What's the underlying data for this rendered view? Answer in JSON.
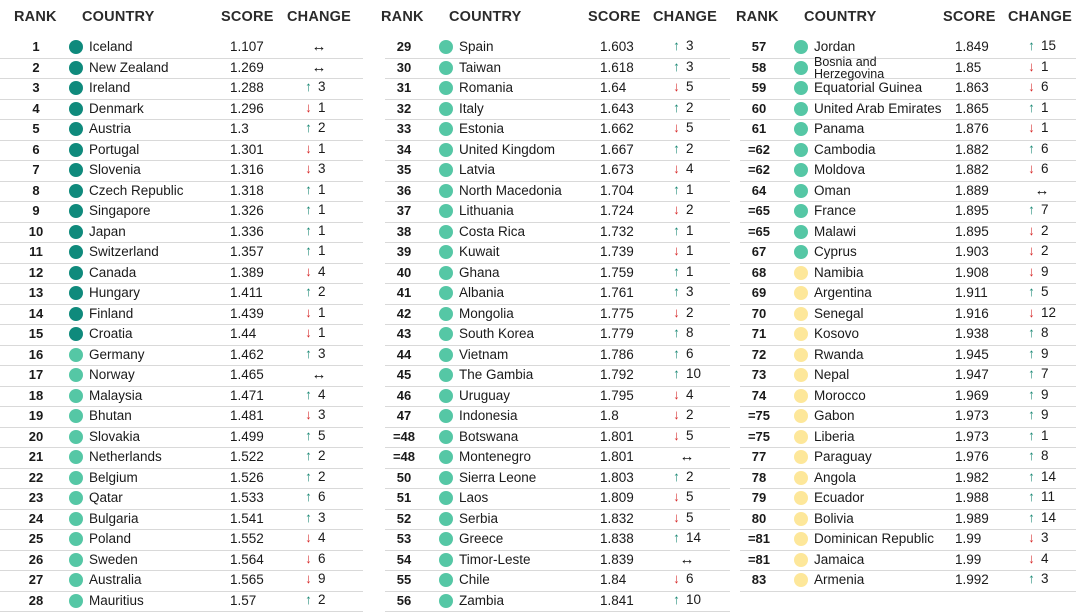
{
  "headers": {
    "rank": "RANK",
    "country": "COUNTRY",
    "score": "SCORE",
    "change": "CHANGE"
  },
  "colors": {
    "dark": "#0f8a7c",
    "mid": "#55c7a5",
    "light": "#fde79a",
    "up": "#1d8a76",
    "down": "#d72b2b"
  },
  "columns": [
    [
      {
        "rank": "1",
        "country": "Iceland",
        "score": "1.107",
        "dir": "same",
        "change": "",
        "tier": "dark"
      },
      {
        "rank": "2",
        "country": "New Zealand",
        "score": "1.269",
        "dir": "same",
        "change": "",
        "tier": "dark"
      },
      {
        "rank": "3",
        "country": "Ireland",
        "score": "1.288",
        "dir": "up",
        "change": "3",
        "tier": "dark"
      },
      {
        "rank": "4",
        "country": "Denmark",
        "score": "1.296",
        "dir": "down",
        "change": "1",
        "tier": "dark"
      },
      {
        "rank": "5",
        "country": "Austria",
        "score": "1.3",
        "dir": "up",
        "change": "2",
        "tier": "dark"
      },
      {
        "rank": "6",
        "country": "Portugal",
        "score": "1.301",
        "dir": "down",
        "change": "1",
        "tier": "dark"
      },
      {
        "rank": "7",
        "country": "Slovenia",
        "score": "1.316",
        "dir": "down",
        "change": "3",
        "tier": "dark"
      },
      {
        "rank": "8",
        "country": "Czech Republic",
        "score": "1.318",
        "dir": "up",
        "change": "1",
        "tier": "dark"
      },
      {
        "rank": "9",
        "country": "Singapore",
        "score": "1.326",
        "dir": "up",
        "change": "1",
        "tier": "dark"
      },
      {
        "rank": "10",
        "country": "Japan",
        "score": "1.336",
        "dir": "up",
        "change": "1",
        "tier": "dark"
      },
      {
        "rank": "11",
        "country": "Switzerland",
        "score": "1.357",
        "dir": "up",
        "change": "1",
        "tier": "dark"
      },
      {
        "rank": "12",
        "country": "Canada",
        "score": "1.389",
        "dir": "down",
        "change": "4",
        "tier": "dark"
      },
      {
        "rank": "13",
        "country": "Hungary",
        "score": "1.411",
        "dir": "up",
        "change": "2",
        "tier": "dark"
      },
      {
        "rank": "14",
        "country": "Finland",
        "score": "1.439",
        "dir": "down",
        "change": "1",
        "tier": "dark"
      },
      {
        "rank": "15",
        "country": "Croatia",
        "score": "1.44",
        "dir": "down",
        "change": "1",
        "tier": "dark"
      },
      {
        "rank": "16",
        "country": "Germany",
        "score": "1.462",
        "dir": "up",
        "change": "3",
        "tier": "mid"
      },
      {
        "rank": "17",
        "country": "Norway",
        "score": "1.465",
        "dir": "same",
        "change": "",
        "tier": "mid"
      },
      {
        "rank": "18",
        "country": "Malaysia",
        "score": "1.471",
        "dir": "up",
        "change": "4",
        "tier": "mid"
      },
      {
        "rank": "19",
        "country": "Bhutan",
        "score": "1.481",
        "dir": "down",
        "change": "3",
        "tier": "mid"
      },
      {
        "rank": "20",
        "country": "Slovakia",
        "score": "1.499",
        "dir": "up",
        "change": "5",
        "tier": "mid"
      },
      {
        "rank": "21",
        "country": "Netherlands",
        "score": "1.522",
        "dir": "up",
        "change": "2",
        "tier": "mid"
      },
      {
        "rank": "22",
        "country": "Belgium",
        "score": "1.526",
        "dir": "up",
        "change": "2",
        "tier": "mid"
      },
      {
        "rank": "23",
        "country": "Qatar",
        "score": "1.533",
        "dir": "up",
        "change": "6",
        "tier": "mid"
      },
      {
        "rank": "24",
        "country": "Bulgaria",
        "score": "1.541",
        "dir": "up",
        "change": "3",
        "tier": "mid"
      },
      {
        "rank": "25",
        "country": "Poland",
        "score": "1.552",
        "dir": "down",
        "change": "4",
        "tier": "mid"
      },
      {
        "rank": "26",
        "country": "Sweden",
        "score": "1.564",
        "dir": "down",
        "change": "6",
        "tier": "mid"
      },
      {
        "rank": "27",
        "country": "Australia",
        "score": "1.565",
        "dir": "down",
        "change": "9",
        "tier": "mid"
      },
      {
        "rank": "28",
        "country": "Mauritius",
        "score": "1.57",
        "dir": "up",
        "change": "2",
        "tier": "mid"
      }
    ],
    [
      {
        "rank": "29",
        "country": "Spain",
        "score": "1.603",
        "dir": "up",
        "change": "3",
        "tier": "mid"
      },
      {
        "rank": "30",
        "country": "Taiwan",
        "score": "1.618",
        "dir": "up",
        "change": "3",
        "tier": "mid"
      },
      {
        "rank": "31",
        "country": "Romania",
        "score": "1.64",
        "dir": "down",
        "change": "5",
        "tier": "mid"
      },
      {
        "rank": "32",
        "country": "Italy",
        "score": "1.643",
        "dir": "up",
        "change": "2",
        "tier": "mid"
      },
      {
        "rank": "33",
        "country": "Estonia",
        "score": "1.662",
        "dir": "down",
        "change": "5",
        "tier": "mid"
      },
      {
        "rank": "34",
        "country": "United Kingdom",
        "score": "1.667",
        "dir": "up",
        "change": "2",
        "tier": "mid"
      },
      {
        "rank": "35",
        "country": "Latvia",
        "score": "1.673",
        "dir": "down",
        "change": "4",
        "tier": "mid"
      },
      {
        "rank": "36",
        "country": "North Macedonia",
        "score": "1.704",
        "dir": "up",
        "change": "1",
        "tier": "mid"
      },
      {
        "rank": "37",
        "country": "Lithuania",
        "score": "1.724",
        "dir": "down",
        "change": "2",
        "tier": "mid"
      },
      {
        "rank": "38",
        "country": "Costa Rica",
        "score": "1.732",
        "dir": "up",
        "change": "1",
        "tier": "mid"
      },
      {
        "rank": "39",
        "country": "Kuwait",
        "score": "1.739",
        "dir": "down",
        "change": "1",
        "tier": "mid"
      },
      {
        "rank": "40",
        "country": "Ghana",
        "score": "1.759",
        "dir": "up",
        "change": "1",
        "tier": "mid"
      },
      {
        "rank": "41",
        "country": "Albania",
        "score": "1.761",
        "dir": "up",
        "change": "3",
        "tier": "mid"
      },
      {
        "rank": "42",
        "country": "Mongolia",
        "score": "1.775",
        "dir": "down",
        "change": "2",
        "tier": "mid"
      },
      {
        "rank": "43",
        "country": "South Korea",
        "score": "1.779",
        "dir": "up",
        "change": "8",
        "tier": "mid"
      },
      {
        "rank": "44",
        "country": "Vietnam",
        "score": "1.786",
        "dir": "up",
        "change": "6",
        "tier": "mid"
      },
      {
        "rank": "45",
        "country": "The Gambia",
        "score": "1.792",
        "dir": "up",
        "change": "10",
        "tier": "mid"
      },
      {
        "rank": "46",
        "country": "Uruguay",
        "score": "1.795",
        "dir": "down",
        "change": "4",
        "tier": "mid"
      },
      {
        "rank": "47",
        "country": "Indonesia",
        "score": "1.8",
        "dir": "down",
        "change": "2",
        "tier": "mid"
      },
      {
        "rank": "=48",
        "country": "Botswana",
        "score": "1.801",
        "dir": "down",
        "change": "5",
        "tier": "mid"
      },
      {
        "rank": "=48",
        "country": "Montenegro",
        "score": "1.801",
        "dir": "same",
        "change": "",
        "tier": "mid"
      },
      {
        "rank": "50",
        "country": "Sierra Leone",
        "score": "1.803",
        "dir": "up",
        "change": "2",
        "tier": "mid"
      },
      {
        "rank": "51",
        "country": "Laos",
        "score": "1.809",
        "dir": "down",
        "change": "5",
        "tier": "mid"
      },
      {
        "rank": "52",
        "country": "Serbia",
        "score": "1.832",
        "dir": "down",
        "change": "5",
        "tier": "mid"
      },
      {
        "rank": "53",
        "country": "Greece",
        "score": "1.838",
        "dir": "up",
        "change": "14",
        "tier": "mid"
      },
      {
        "rank": "54",
        "country": "Timor-Leste",
        "score": "1.839",
        "dir": "same",
        "change": "",
        "tier": "mid"
      },
      {
        "rank": "55",
        "country": "Chile",
        "score": "1.84",
        "dir": "down",
        "change": "6",
        "tier": "mid"
      },
      {
        "rank": "56",
        "country": "Zambia",
        "score": "1.841",
        "dir": "up",
        "change": "10",
        "tier": "mid"
      }
    ],
    [
      {
        "rank": "57",
        "country": "Jordan",
        "score": "1.849",
        "dir": "up",
        "change": "15",
        "tier": "mid"
      },
      {
        "rank": "58",
        "country": "Bosnia and Herzegovina",
        "score": "1.85",
        "dir": "down",
        "change": "1",
        "tier": "mid",
        "two": true
      },
      {
        "rank": "59",
        "country": "Equatorial Guinea",
        "score": "1.863",
        "dir": "down",
        "change": "6",
        "tier": "mid"
      },
      {
        "rank": "60",
        "country": "United Arab Emirates",
        "score": "1.865",
        "dir": "up",
        "change": "1",
        "tier": "mid"
      },
      {
        "rank": "61",
        "country": "Panama",
        "score": "1.876",
        "dir": "down",
        "change": "1",
        "tier": "mid"
      },
      {
        "rank": "=62",
        "country": "Cambodia",
        "score": "1.882",
        "dir": "up",
        "change": "6",
        "tier": "mid"
      },
      {
        "rank": "=62",
        "country": "Moldova",
        "score": "1.882",
        "dir": "down",
        "change": "6",
        "tier": "mid"
      },
      {
        "rank": "64",
        "country": "Oman",
        "score": "1.889",
        "dir": "same",
        "change": "",
        "tier": "mid"
      },
      {
        "rank": "=65",
        "country": "France",
        "score": "1.895",
        "dir": "up",
        "change": "7",
        "tier": "mid"
      },
      {
        "rank": "=65",
        "country": "Malawi",
        "score": "1.895",
        "dir": "down",
        "change": "2",
        "tier": "mid"
      },
      {
        "rank": "67",
        "country": "Cyprus",
        "score": "1.903",
        "dir": "down",
        "change": "2",
        "tier": "mid"
      },
      {
        "rank": "68",
        "country": "Namibia",
        "score": "1.908",
        "dir": "down",
        "change": "9",
        "tier": "light"
      },
      {
        "rank": "69",
        "country": "Argentina",
        "score": "1.911",
        "dir": "up",
        "change": "5",
        "tier": "light"
      },
      {
        "rank": "70",
        "country": "Senegal",
        "score": "1.916",
        "dir": "down",
        "change": "12",
        "tier": "light"
      },
      {
        "rank": "71",
        "country": "Kosovo",
        "score": "1.938",
        "dir": "up",
        "change": "8",
        "tier": "light"
      },
      {
        "rank": "72",
        "country": "Rwanda",
        "score": "1.945",
        "dir": "up",
        "change": "9",
        "tier": "light"
      },
      {
        "rank": "73",
        "country": "Nepal",
        "score": "1.947",
        "dir": "up",
        "change": "7",
        "tier": "light"
      },
      {
        "rank": "74",
        "country": "Morocco",
        "score": "1.969",
        "dir": "up",
        "change": "9",
        "tier": "light"
      },
      {
        "rank": "=75",
        "country": "Gabon",
        "score": "1.973",
        "dir": "up",
        "change": "9",
        "tier": "light"
      },
      {
        "rank": "=75",
        "country": "Liberia",
        "score": "1.973",
        "dir": "up",
        "change": "1",
        "tier": "light"
      },
      {
        "rank": "77",
        "country": "Paraguay",
        "score": "1.976",
        "dir": "up",
        "change": "8",
        "tier": "light"
      },
      {
        "rank": "78",
        "country": "Angola",
        "score": "1.982",
        "dir": "up",
        "change": "14",
        "tier": "light"
      },
      {
        "rank": "79",
        "country": "Ecuador",
        "score": "1.988",
        "dir": "up",
        "change": "11",
        "tier": "light"
      },
      {
        "rank": "80",
        "country": "Bolivia",
        "score": "1.989",
        "dir": "up",
        "change": "14",
        "tier": "light"
      },
      {
        "rank": "=81",
        "country": "Dominican Republic",
        "score": "1.99",
        "dir": "down",
        "change": "3",
        "tier": "light"
      },
      {
        "rank": "=81",
        "country": "Jamaica",
        "score": "1.99",
        "dir": "down",
        "change": "4",
        "tier": "light"
      },
      {
        "rank": "83",
        "country": "Armenia",
        "score": "1.992",
        "dir": "up",
        "change": "3",
        "tier": "light"
      }
    ]
  ]
}
